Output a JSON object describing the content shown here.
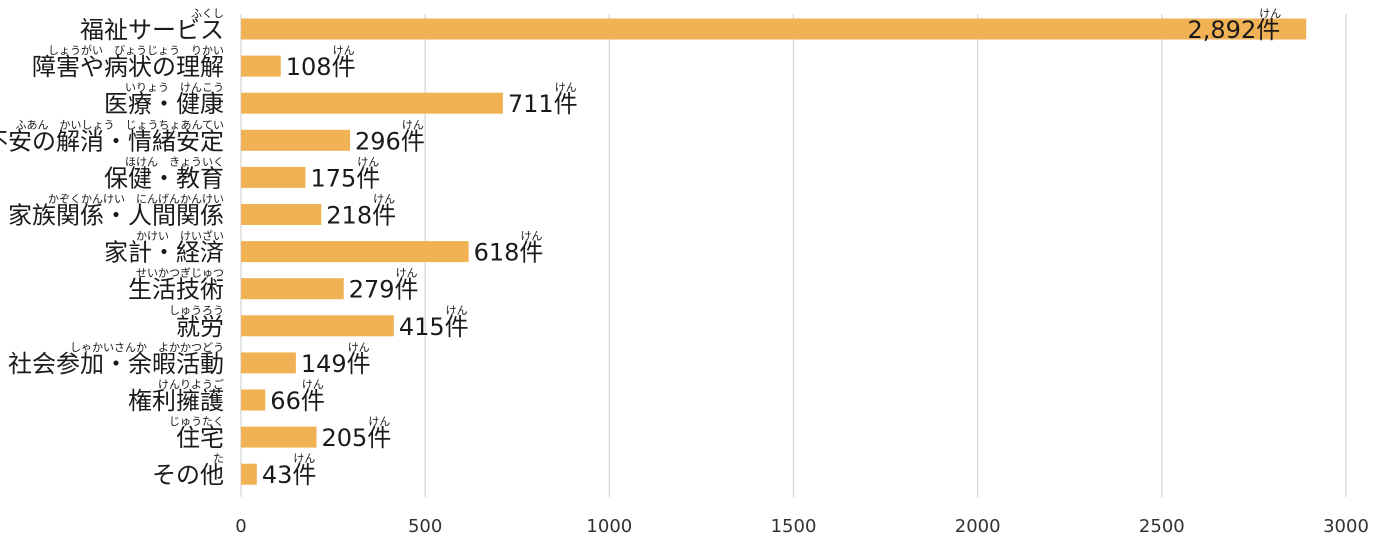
{
  "chart_data": {
    "type": "bar",
    "orientation": "horizontal",
    "title": "",
    "xlabel": "",
    "ylabel": "",
    "xlim": [
      0,
      3000
    ],
    "xticks": [
      0,
      500,
      1000,
      1500,
      2000,
      2500,
      3000
    ],
    "grid": "vertical",
    "bar_color": "#F0B254",
    "categories": [
      "福祉サービス",
      "障害や病状の理解",
      "医療・健康",
      "不安の解消・情緒安定",
      "保健・教育",
      "家族関係・人間関係",
      "家計・経済",
      "生活技術",
      "就労",
      "社会参加・余暇活動",
      "権利擁護",
      "住宅",
      "その他"
    ],
    "category_furigana": [
      "ふくし",
      "しょうがい　びょうじょう　りかい",
      "いりょう　けんこう",
      "ふあん　かいしょう　じょうちょあんてい",
      "ほけん　きょういく",
      "かぞくかんけい　にんげんかんけい",
      "かけい　けいざい",
      "せいかつぎじゅつ",
      "しゅうろう",
      "しゃかいさんか　よかかつどう",
      "けんりようご",
      "じゅうたく",
      "た"
    ],
    "values": [
      2892,
      108,
      711,
      296,
      175,
      218,
      618,
      279,
      415,
      149,
      66,
      205,
      43
    ],
    "value_labels": [
      "2,892件",
      "108件",
      "711件",
      "296件",
      "175件",
      "218件",
      "618件",
      "279件",
      "415件",
      "149件",
      "66件",
      "205件",
      "43件"
    ],
    "value_furigana": "けん"
  }
}
